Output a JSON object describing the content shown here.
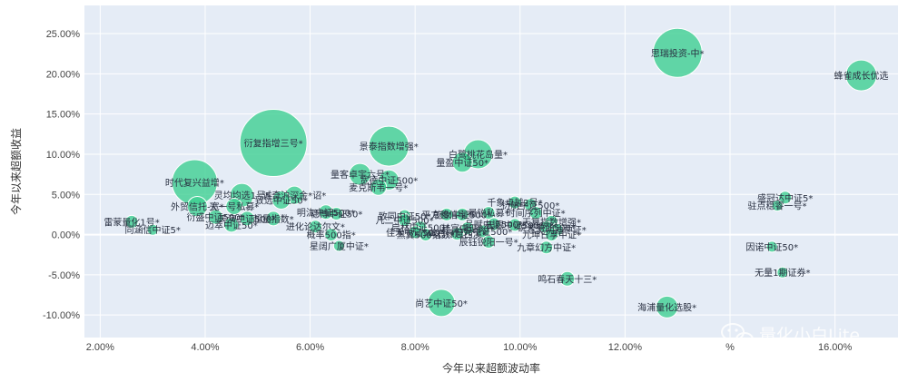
{
  "chart_data": {
    "type": "scatter",
    "xlabel": "今年以来超额波动率",
    "ylabel": "今年以来超额收益",
    "xlim": [
      1.7,
      17.2
    ],
    "ylim": [
      -12.8,
      28.5
    ],
    "x_ticks": [
      {
        "v": 2,
        "label": "2.00%"
      },
      {
        "v": 4,
        "label": "4.00%"
      },
      {
        "v": 6,
        "label": "6.00%"
      },
      {
        "v": 8,
        "label": "8.00%"
      },
      {
        "v": 10,
        "label": "10.00%"
      },
      {
        "v": 12,
        "label": "12.00%"
      },
      {
        "v": 14,
        "label": "%"
      },
      {
        "v": 16,
        "label": "16.00%"
      }
    ],
    "y_ticks": [
      {
        "v": 25,
        "label": "25.00%"
      },
      {
        "v": 20,
        "label": "20.00%"
      },
      {
        "v": 15,
        "label": "15.00%"
      },
      {
        "v": 10,
        "label": "10.00%"
      },
      {
        "v": 5,
        "label": "5.00%"
      },
      {
        "v": 0,
        "label": "0.00%"
      },
      {
        "v": -5,
        "label": "-5.00%"
      },
      {
        "v": -10,
        "label": "-10.00%"
      }
    ],
    "grid": true,
    "bubble_color": "#3ecf92",
    "plot_bg": "#e5ecf6",
    "points": [
      {
        "name": "思瑞投资-中*",
        "x": 13.0,
        "y": 22.6,
        "r": 27
      },
      {
        "name": "蜂雀成长优选",
        "x": 16.5,
        "y": 19.8,
        "r": 17
      },
      {
        "name": "衍复指增三号*",
        "x": 5.3,
        "y": 11.4,
        "r": 37
      },
      {
        "name": "景泰指数增强*",
        "x": 7.5,
        "y": 11.0,
        "r": 22
      },
      {
        "name": "白鹭桃花岛量*",
        "x": 9.2,
        "y": 10.0,
        "r": 16
      },
      {
        "name": "量盈中证50*",
        "x": 8.9,
        "y": 9.0,
        "r": 11
      },
      {
        "name": "时代复兴益增*",
        "x": 3.8,
        "y": 6.5,
        "r": 25
      },
      {
        "name": "量客卓宇六号*",
        "x": 6.95,
        "y": 7.5,
        "r": 12
      },
      {
        "name": "宽德中证500*",
        "x": 7.5,
        "y": 6.8,
        "r": 11
      },
      {
        "name": "麦克斯韦一号*",
        "x": 7.3,
        "y": 5.9,
        "r": 9
      },
      {
        "name": "灵均均选1号*",
        "x": 4.7,
        "y": 4.9,
        "r": 13
      },
      {
        "name": "诚奇沪深金*诏*",
        "x": 5.7,
        "y": 4.9,
        "r": 10
      },
      {
        "name": "致远中证50*",
        "x": 5.45,
        "y": 4.3,
        "r": 10
      },
      {
        "name": "外贸信托-宽*",
        "x": 3.85,
        "y": 3.5,
        "r": 11
      },
      {
        "name": "天一号私募*",
        "x": 4.55,
        "y": 3.5,
        "r": 9
      },
      {
        "name": "衍盛中证500*",
        "x": 4.2,
        "y": 2.2,
        "r": 8
      },
      {
        "name": "天演中证500*",
        "x": 4.8,
        "y": 2.0,
        "r": 8
      },
      {
        "name": "超量指数*",
        "x": 5.3,
        "y": 2.0,
        "r": 8
      },
      {
        "name": "迈萃中证50*",
        "x": 4.5,
        "y": 1.2,
        "r": 8
      },
      {
        "name": "雷蒙量化1号*",
        "x": 2.6,
        "y": 1.6,
        "r": 7
      },
      {
        "name": "同涵信中证5*",
        "x": 3.0,
        "y": 0.6,
        "r": 6
      },
      {
        "name": "明汯中证500*",
        "x": 6.3,
        "y": 2.8,
        "r": 8
      },
      {
        "name": "稳博中证50*",
        "x": 6.5,
        "y": 2.6,
        "r": 7
      },
      {
        "name": "进化论达尔文*",
        "x": 6.1,
        "y": 1.0,
        "r": 7
      },
      {
        "name": "概率500指*",
        "x": 6.4,
        "y": 0.0,
        "r": 7
      },
      {
        "name": "星阔广厦中证*",
        "x": 6.55,
        "y": -1.4,
        "r": 6
      },
      {
        "name": "致同中证50*",
        "x": 7.8,
        "y": 2.3,
        "r": 7
      },
      {
        "name": "凡二中证500*",
        "x": 7.8,
        "y": 1.8,
        "r": 7
      },
      {
        "name": "启林中证500*",
        "x": 8.1,
        "y": 0.9,
        "r": 7
      },
      {
        "name": "佳禾中证500*",
        "x": 8.0,
        "y": 0.3,
        "r": 7
      },
      {
        "name": "黑翼500指数*",
        "x": 8.2,
        "y": 0.0,
        "r": 7
      },
      {
        "name": "平方和信享*",
        "x": 8.6,
        "y": 2.5,
        "r": 7
      },
      {
        "name": "乾象中证500*",
        "x": 8.9,
        "y": 2.5,
        "r": 7
      },
      {
        "name": "量锐私募*",
        "x": 9.4,
        "y": 2.7,
        "r": 7
      },
      {
        "name": "品赋中证500*",
        "x": 9.5,
        "y": 1.3,
        "r": 7
      },
      {
        "name": "宏锡中证500*",
        "x": 9.9,
        "y": 1.2,
        "r": 7
      },
      {
        "name": "赫富中证50*",
        "x": 9.0,
        "y": 0.8,
        "r": 7
      },
      {
        "name": "伯兄中证500*",
        "x": 9.3,
        "y": 0.4,
        "r": 7
      },
      {
        "name": "鸣石缘起西溪*",
        "x": 8.8,
        "y": 0.1,
        "r": 7
      },
      {
        "name": "辰钰锐阳一号*",
        "x": 9.4,
        "y": -0.9,
        "r": 7
      },
      {
        "name": "千象卓越2号*",
        "x": 9.9,
        "y": 4.0,
        "r": 7
      },
      {
        "name": "衍航中证500*",
        "x": 10.2,
        "y": 3.7,
        "r": 7
      },
      {
        "name": "时间序列中证*",
        "x": 10.3,
        "y": 2.7,
        "r": 7
      },
      {
        "name": "天算指数增强*",
        "x": 10.6,
        "y": 1.6,
        "r": 7
      },
      {
        "name": "锐天中证500*",
        "x": 10.5,
        "y": 0.9,
        "r": 7
      },
      {
        "name": "念觉明迪中证*",
        "x": 10.7,
        "y": 0.6,
        "r": 7
      },
      {
        "name": "九坤日享中证*",
        "x": 10.6,
        "y": 0.0,
        "r": 7
      },
      {
        "name": "九章幻方中证*",
        "x": 10.5,
        "y": -1.6,
        "r": 7
      },
      {
        "name": "盛冠达中证5*",
        "x": 15.05,
        "y": 4.6,
        "r": 7
      },
      {
        "name": "驻点稳睿一号*",
        "x": 14.9,
        "y": 3.6,
        "r": 6
      },
      {
        "name": "因诺中证50*",
        "x": 14.8,
        "y": -1.5,
        "r": 6
      },
      {
        "name": "无量1期证券*",
        "x": 15.0,
        "y": -4.7,
        "r": 6
      },
      {
        "name": "鸣石春天十三*",
        "x": 10.9,
        "y": -5.5,
        "r": 8
      },
      {
        "name": "尚艺中证50*",
        "x": 8.5,
        "y": -8.5,
        "r": 15
      },
      {
        "name": "海浦量化选股*",
        "x": 12.8,
        "y": -9.0,
        "r": 12
      }
    ]
  },
  "watermark": {
    "text": "量化小白Lite",
    "icon": "wechat-icon"
  }
}
